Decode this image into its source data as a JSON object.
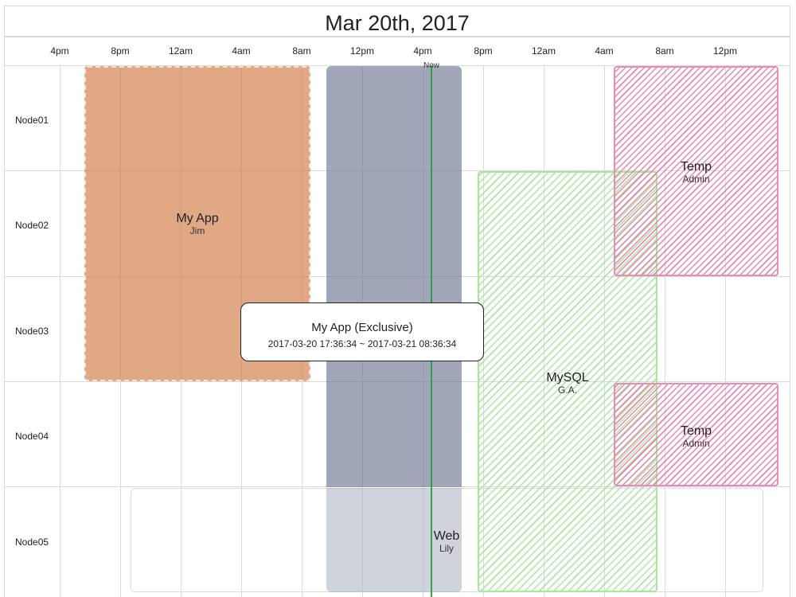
{
  "title": "Mar 20th, 2017",
  "time_ticks": [
    "4pm",
    "8pm",
    "12am",
    "4am",
    "8am",
    "12pm",
    "4pm",
    "8pm",
    "12am",
    "4am",
    "8am",
    "12pm"
  ],
  "now_label": "Now",
  "nodes": [
    "Node01",
    "Node02",
    "Node03",
    "Node04",
    "Node05"
  ],
  "events": {
    "myapp": {
      "title": "My App",
      "owner": "Jim",
      "color": "#d98d5f"
    },
    "exclusive": {
      "title": "My App (Exclusive)",
      "color": "#8a91a9"
    },
    "web": {
      "title": "Web",
      "owner": "Lily",
      "color": "#a1a7ba"
    },
    "mysql": {
      "title": "MySQL",
      "owner": "G.A.",
      "color": "#a6e899"
    },
    "temp1": {
      "title": "Temp",
      "owner": "Admin",
      "color": "#e98cb7"
    },
    "temp2": {
      "title": "Temp",
      "owner": "Admin",
      "color": "#e98cb7"
    }
  },
  "tooltip": {
    "title": "My App (Exclusive)",
    "range": "2017-03-20 17:36:34 ~ 2017-03-21 08:36:34"
  }
}
